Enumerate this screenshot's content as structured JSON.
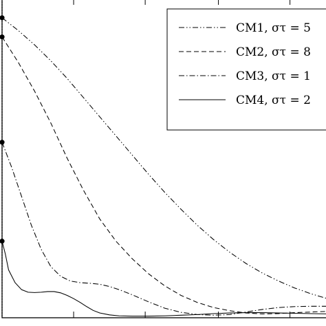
{
  "chart_data": {
    "type": "line",
    "title": "",
    "xlabel": "",
    "ylabel": "",
    "grid": false,
    "legend_position": "top-right",
    "xlim": [
      0,
      100
    ],
    "ylim": [
      0,
      100
    ],
    "series": [
      {
        "name": "CM1, στ = 5",
        "dash": "8 3 1.5 3 1.5 3",
        "x": [
          0,
          5,
          10,
          15,
          20,
          25,
          30,
          35,
          40,
          45,
          50,
          55,
          60,
          65,
          70,
          75,
          80,
          85,
          90,
          95,
          100
        ],
        "y": [
          94,
          90,
          85.5,
          80.5,
          75,
          69,
          63,
          57,
          51,
          45,
          39.3,
          34,
          29,
          24.5,
          20.5,
          17,
          14,
          11.5,
          9.3,
          7.5,
          6
        ]
      },
      {
        "name": "CM2, στ = 8",
        "dash": "7 4",
        "x": [
          0,
          5,
          10,
          15,
          20,
          25,
          30,
          35,
          40,
          45,
          50,
          55,
          60,
          65,
          70,
          75,
          80,
          85,
          90,
          95,
          100
        ],
        "y": [
          88,
          80,
          71,
          61,
          50,
          40,
          31,
          24,
          18.5,
          13.8,
          10,
          7,
          4.8,
          3.2,
          2.2,
          1.5,
          1.2,
          1.3,
          1.6,
          1.8,
          2
        ]
      },
      {
        "name": "CM3, στ = 1",
        "dash": "8 3 1.5 3",
        "x": [
          0,
          3,
          6,
          9,
          12,
          15,
          18,
          21,
          24,
          27,
          30,
          33,
          36,
          40,
          45,
          50,
          55,
          60,
          65,
          70,
          75,
          80,
          85,
          90,
          95,
          100
        ],
        "y": [
          55,
          47,
          38,
          29,
          21.5,
          16,
          13,
          11.5,
          11,
          10.8,
          10.5,
          9.8,
          8.8,
          7.2,
          5,
          3,
          1.7,
          1,
          0.8,
          1,
          1.8,
          2.6,
          3.2,
          3.5,
          3.6,
          3.6
        ]
      },
      {
        "name": "CM4, στ = 2",
        "dash": "",
        "x": [
          0,
          1,
          2,
          4,
          6,
          8,
          10,
          12,
          14,
          16,
          18,
          20,
          22,
          24,
          26,
          28,
          30,
          33,
          36,
          40,
          45,
          50,
          55,
          60,
          65,
          70,
          75,
          80,
          85,
          90,
          95,
          100
        ],
        "y": [
          24,
          20,
          15,
          11,
          8.8,
          8,
          7.9,
          8,
          8.2,
          8.2,
          7.8,
          7,
          6,
          4.8,
          3.5,
          2.3,
          1.5,
          0.9,
          0.6,
          0.5,
          0.5,
          0.6,
          0.8,
          1,
          1.3,
          1.5,
          1.6,
          1.6,
          1.5,
          1.4,
          1.3,
          1.2
        ]
      }
    ]
  }
}
